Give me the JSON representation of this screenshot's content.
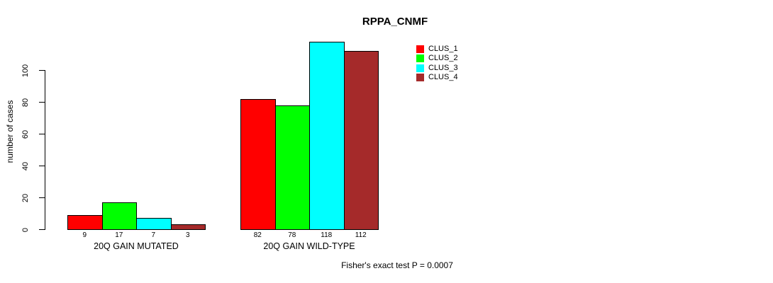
{
  "chart_data": {
    "type": "bar",
    "title": "RPPA_CNMF",
    "ylabel": "number of cases",
    "xlabel": "",
    "yticks": [
      0,
      20,
      40,
      60,
      80,
      100
    ],
    "ylim": [
      0,
      120
    ],
    "grid": false,
    "legend_position": "top-right-inside",
    "categories": [
      "20Q GAIN MUTATED",
      "20Q GAIN WILD-TYPE"
    ],
    "series": [
      {
        "name": "CLUS_1",
        "color": "#FF0000",
        "values": [
          9,
          82
        ]
      },
      {
        "name": "CLUS_2",
        "color": "#00FF00",
        "values": [
          17,
          78
        ]
      },
      {
        "name": "CLUS_3",
        "color": "#00FFFF",
        "values": [
          7,
          118
        ]
      },
      {
        "name": "CLUS_4",
        "color": "#A52A2A",
        "values": [
          3,
          112
        ]
      }
    ],
    "bar_value_labels": [
      [
        "9",
        "17",
        "7",
        "3"
      ],
      [
        "82",
        "78",
        "118",
        "112"
      ]
    ],
    "annotation": "Fisher's exact test P = 0.0007"
  }
}
